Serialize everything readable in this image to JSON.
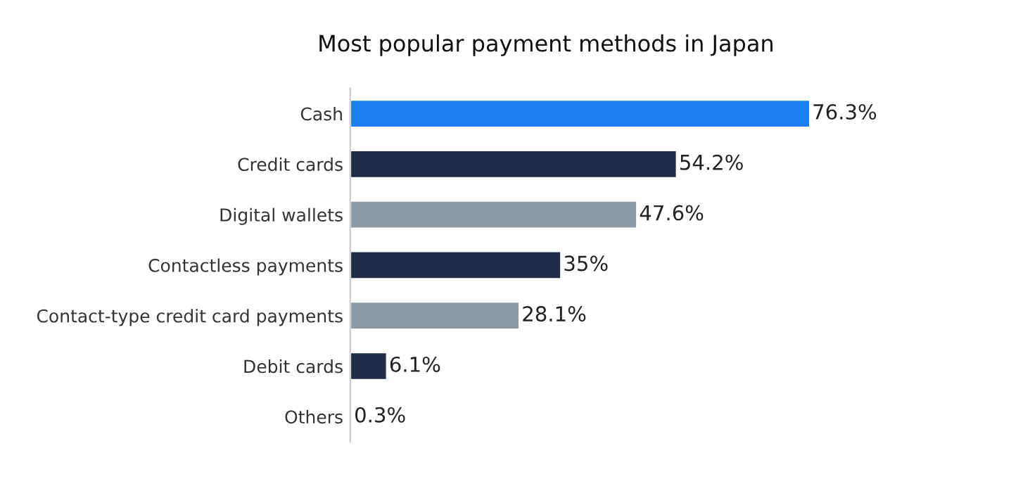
{
  "chart_data": {
    "type": "bar",
    "orientation": "horizontal",
    "title": "Most popular payment methods in Japan",
    "categories": [
      "Cash",
      "Credit cards",
      "Digital wallets",
      "Contactless payments",
      "Contact-type credit card payments",
      "Debit cards",
      "Others"
    ],
    "values": [
      76.3,
      54.2,
      47.6,
      35,
      28.1,
      6.1,
      0.3
    ],
    "colors": [
      "#1a80f2",
      "#1f2c45",
      "#8d9aa5",
      "#1f2c45",
      "#8d9aa5",
      "#1f2c45",
      "#8d9aa5"
    ],
    "value_labels": [
      "76.3%",
      "54.2%",
      "47.6%",
      "35%",
      "28.1%",
      "6.1%",
      "0.3%"
    ],
    "grid": false,
    "legend": false
  }
}
